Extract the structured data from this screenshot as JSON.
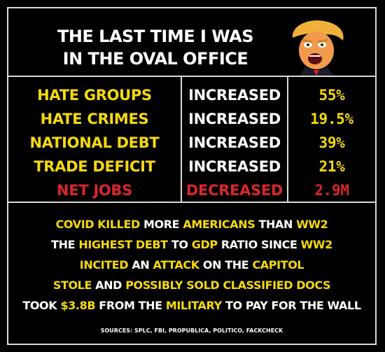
{
  "title": {
    "line1": "THE LAST TIME I WAS",
    "line2": "IN THE OVAL OFFICE"
  },
  "stats": [
    {
      "label": "HATE GROUPS",
      "change": "INCREASED",
      "value": "55%"
    },
    {
      "label": "HATE CRIMES",
      "change": "INCREASED",
      "value": "19.5%"
    },
    {
      "label": "NATIONAL DEBT",
      "change": "INCREASED",
      "value": "39%"
    },
    {
      "label": "TRADE DEFICIT",
      "change": "INCREASED",
      "value": "21%"
    },
    {
      "label": "NET JOBS",
      "change": "DECREASED",
      "value": "2.9M"
    }
  ],
  "facts": [
    [
      {
        "t": "COVID KILLED",
        "c": "yel"
      },
      {
        "t": " MORE ",
        "c": "wht"
      },
      {
        "t": "AMERICANS",
        "c": "yel"
      },
      {
        "t": " THAN ",
        "c": "wht"
      },
      {
        "t": "WW2",
        "c": "yel"
      }
    ],
    [
      {
        "t": "THE ",
        "c": "wht"
      },
      {
        "t": "HIGHEST DEBT",
        "c": "yel"
      },
      {
        "t": " TO ",
        "c": "wht"
      },
      {
        "t": "GDP",
        "c": "yel"
      },
      {
        "t": " RATIO SINCE ",
        "c": "wht"
      },
      {
        "t": "WW2",
        "c": "yel"
      }
    ],
    [
      {
        "t": "INCITED",
        "c": "yel"
      },
      {
        "t": " AN ",
        "c": "wht"
      },
      {
        "t": "ATTACK",
        "c": "yel"
      },
      {
        "t": " ON THE ",
        "c": "wht"
      },
      {
        "t": "CAPITOL",
        "c": "yel"
      }
    ],
    [
      {
        "t": "STOLE",
        "c": "yel"
      },
      {
        "t": " AND ",
        "c": "wht"
      },
      {
        "t": "POSSIBLY SOLD CLASSIFIED DOCS",
        "c": "yel"
      }
    ],
    [
      {
        "t": "TOOK ",
        "c": "wht"
      },
      {
        "t": "$3.8B",
        "c": "yel"
      },
      {
        "t": " FROM THE ",
        "c": "wht"
      },
      {
        "t": "MILITARY",
        "c": "yel"
      },
      {
        "t": " TO PAY FOR THE WALL",
        "c": "wht"
      }
    ]
  ],
  "sources": "SOURCES: SPLC, FBI, PROPUBLICA, POLITICO, FACKCHECK",
  "colors": {
    "yellow": "#f5d90e",
    "red": "#d8262b",
    "white": "#ffffff",
    "border": "#d9d9d9"
  },
  "icons": {
    "caricature": "caricature-icon"
  }
}
